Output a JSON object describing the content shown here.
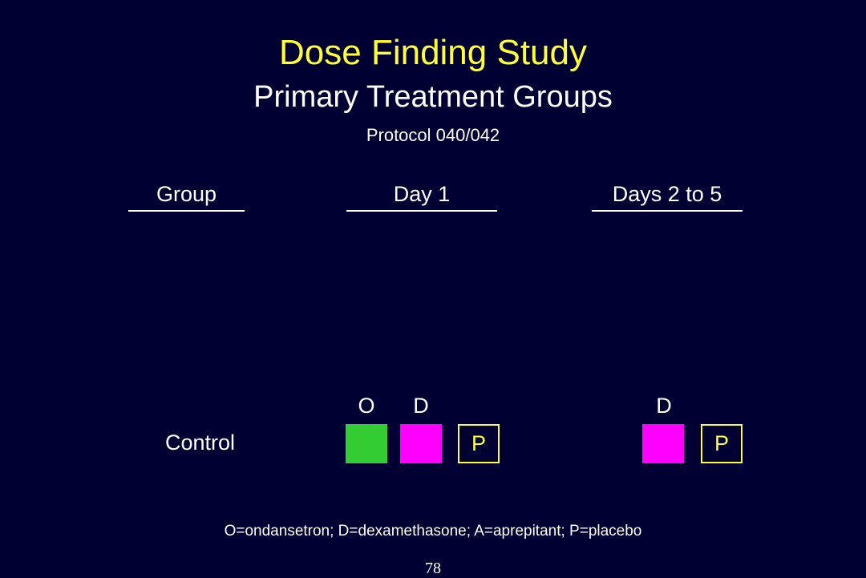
{
  "slide": {
    "title": "Dose Finding Study",
    "subtitle": "Primary Treatment Groups",
    "protocol": "Protocol 040/042",
    "page_number": "78"
  },
  "columns": {
    "group": "Group",
    "day1": "Day 1",
    "days2to5": "Days 2 to 5"
  },
  "rows": [
    {
      "label": "Control",
      "day1_letters": [
        "O",
        "D"
      ],
      "day1_boxes": [
        {
          "kind": "ondansetron",
          "color": "#33cc33",
          "text": ""
        },
        {
          "kind": "dexamethasone",
          "color": "#ff00ff",
          "text": ""
        },
        {
          "kind": "placebo",
          "color": "#ffff33",
          "text": "P"
        }
      ],
      "days2to5_letters": [
        "D"
      ],
      "days2to5_boxes": [
        {
          "kind": "dexamethasone",
          "color": "#ff00ff",
          "text": ""
        },
        {
          "kind": "placebo",
          "color": "#ffff33",
          "text": "P"
        }
      ]
    }
  ],
  "legend": "O=ondansetron; D=dexamethasone; A=aprepitant; P=placebo",
  "colors": {
    "background": "#000033",
    "title": "#ffff33",
    "ondansetron": "#33cc33",
    "dexamethasone": "#ff00ff",
    "placebo_border": "#ffff33"
  }
}
